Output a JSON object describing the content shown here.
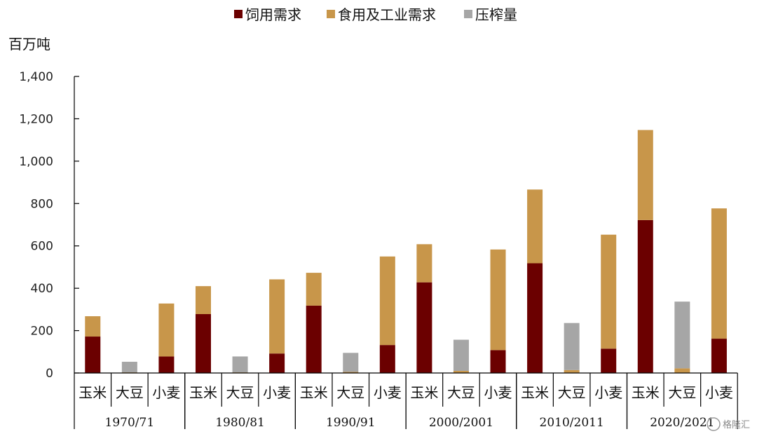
{
  "chart_data": {
    "type": "bar",
    "stacked": true,
    "ylabel": "百万吨",
    "ylim": [
      0,
      1400
    ],
    "yticks": [
      0,
      200,
      400,
      600,
      800,
      1000,
      1200,
      1400
    ],
    "ytick_labels": [
      "0",
      "200",
      "400",
      "600",
      "800",
      "1,000",
      "1,200",
      "1,400"
    ],
    "grid": false,
    "legend_position": "top",
    "periods": [
      "1970/71",
      "1980/81",
      "1990/91",
      "2000/2001",
      "2010/2011",
      "2020/2021"
    ],
    "crops": [
      "玉米",
      "大豆",
      "小麦"
    ],
    "series": [
      {
        "name": "饲用需求",
        "color": "#6b0000",
        "values": [
          [
            172,
            0,
            78
          ],
          [
            278,
            0,
            92
          ],
          [
            318,
            0,
            132
          ],
          [
            428,
            0,
            108
          ],
          [
            518,
            0,
            115
          ],
          [
            722,
            0,
            162
          ]
        ]
      },
      {
        "name": "食用及工业需求",
        "color": "#c8964a",
        "values": [
          [
            96,
            3,
            250
          ],
          [
            132,
            3,
            350
          ],
          [
            155,
            5,
            418
          ],
          [
            180,
            10,
            475
          ],
          [
            348,
            14,
            538
          ],
          [
            425,
            22,
            615
          ]
        ]
      },
      {
        "name": "压榨量",
        "color": "#a6a6a6",
        "values": [
          [
            0,
            50,
            0
          ],
          [
            0,
            75,
            0
          ],
          [
            0,
            90,
            0
          ],
          [
            0,
            147,
            0
          ],
          [
            0,
            222,
            0
          ],
          [
            0,
            315,
            0
          ]
        ]
      }
    ]
  },
  "watermark": "格隆汇"
}
